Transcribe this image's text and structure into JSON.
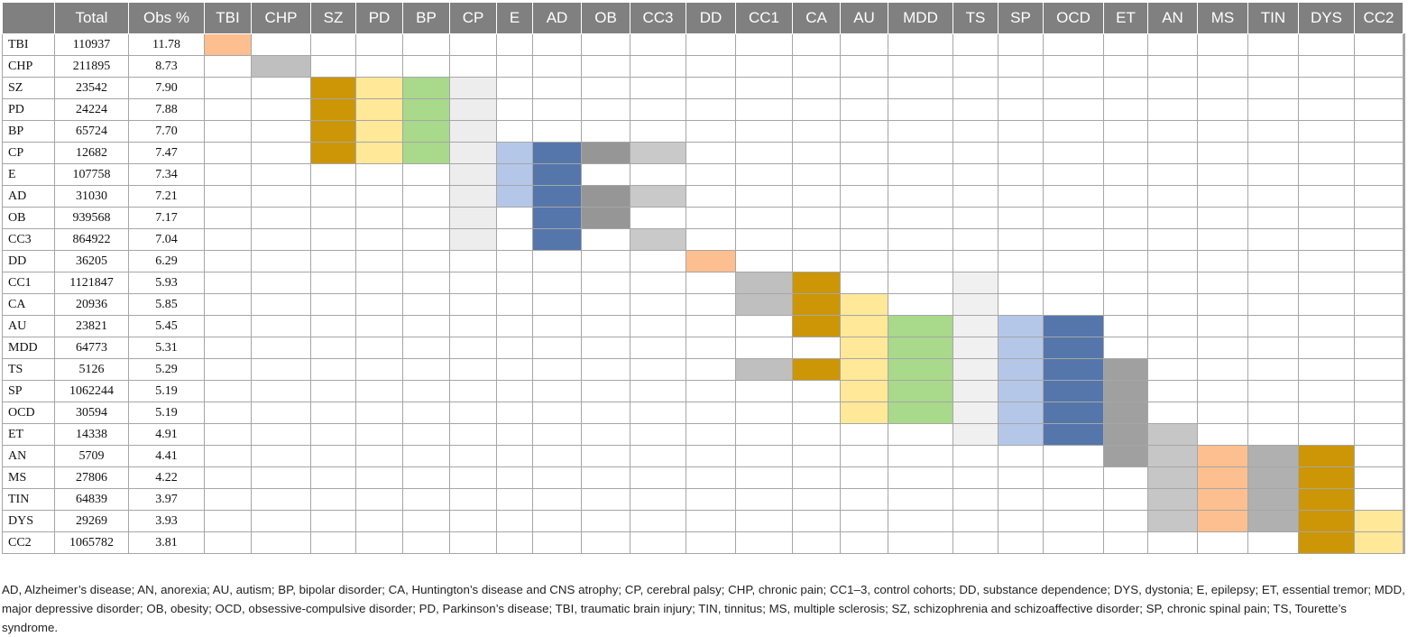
{
  "table": {
    "header": [
      "",
      "Total",
      "Obs %",
      "TBI",
      "CHP",
      "SZ",
      "PD",
      "BP",
      "CP",
      "E",
      "AD",
      "OB",
      "CC3",
      "DD",
      "CC1",
      "CA",
      "AU",
      "MDD",
      "TS",
      "SP",
      "OCD",
      "ET",
      "AN",
      "MS",
      "TIN",
      "DYS",
      "CC2"
    ],
    "palette": {
      "a": "#fdbf8f",
      "b": "#bfbfbf",
      "c": "#cc9606",
      "d": "#ffe898",
      "e": "#a9d98a",
      "f": "#ededed",
      "g": "#b4c7e8",
      "h": "#5576ab",
      "i": "#969696",
      "j": "#c9c9c9",
      "k": "#f0f0f0",
      "l": "#a0a0a0",
      "m": "#c6c6c6",
      "n": "#b0b0b0"
    },
    "rows": [
      {
        "label": "TBI",
        "total": "110937",
        "obs": "11.78",
        "fill": "a........................."
      },
      {
        "label": "CHP",
        "total": "211895",
        "obs": "8.73",
        "fill": ".b........................"
      },
      {
        "label": "SZ",
        "total": "23542",
        "obs": "7.90",
        "fill": "..cdef...................."
      },
      {
        "label": "PD",
        "total": "24224",
        "obs": "7.88",
        "fill": "..cdef...................."
      },
      {
        "label": "BP",
        "total": "65724",
        "obs": "7.70",
        "fill": "..cdef...................."
      },
      {
        "label": "CP",
        "total": "12682",
        "obs": "7.47",
        "fill": "..cdefghij................"
      },
      {
        "label": "E",
        "total": "107758",
        "obs": "7.34",
        "fill": ".....fgh.................."
      },
      {
        "label": "AD",
        "total": "31030",
        "obs": "7.21",
        "fill": ".....fghij................"
      },
      {
        "label": "OB",
        "total": "939568",
        "obs": "7.17",
        "fill": ".....f.hi................."
      },
      {
        "label": "CC3",
        "total": "864922",
        "obs": "7.04",
        "fill": ".....f.h.j................"
      },
      {
        "label": "DD",
        "total": "36205",
        "obs": "6.29",
        "fill": "..........a..............."
      },
      {
        "label": "CC1",
        "total": "1121847",
        "obs": "5.93",
        "fill": "...........bc..k.........."
      },
      {
        "label": "CA",
        "total": "20936",
        "obs": "5.85",
        "fill": "...........bcd.k.........."
      },
      {
        "label": "AU",
        "total": "23821",
        "obs": "5.45",
        "fill": "............cdekgh........"
      },
      {
        "label": "MDD",
        "total": "64773",
        "obs": "5.31",
        "fill": ".............dekgh........"
      },
      {
        "label": "TS",
        "total": "5126",
        "obs": "5.29",
        "fill": "...........bcdekghl......."
      },
      {
        "label": "SP",
        "total": "1062244",
        "obs": "5.19",
        "fill": ".............dekghl......."
      },
      {
        "label": "OCD",
        "total": "30594",
        "obs": "5.19",
        "fill": ".............dekghl......."
      },
      {
        "label": "ET",
        "total": "14338",
        "obs": "4.91",
        "fill": "...............kghlm......"
      },
      {
        "label": "AN",
        "total": "5709",
        "obs": "4.41",
        "fill": "..................lmanc..."
      },
      {
        "label": "MS",
        "total": "27806",
        "obs": "4.22",
        "fill": "...................manc..."
      },
      {
        "label": "TIN",
        "total": "64839",
        "obs": "3.97",
        "fill": "...................manc..."
      },
      {
        "label": "DYS",
        "total": "29269",
        "obs": "3.93",
        "fill": "...................mancd.."
      },
      {
        "label": "CC2",
        "total": "1065782",
        "obs": "3.81",
        "fill": "......................cd.."
      }
    ]
  },
  "footnote": "AD, Alzheimer’s disease; AN, anorexia; AU, autism; BP, bipolar disorder; CA, Huntington’s disease and CNS atrophy; CP, cerebral palsy; CHP, chronic pain; CC1–3, control cohorts; DD, substance dependence; DYS, dystonia; E, epilepsy; ET, essential tremor; MDD, major depressive disorder; OB, obesity; OCD, obsessive-compulsive disorder; PD, Parkinson’s disease; TBI, traumatic brain injury; TIN, tinnitus; MS, multiple sclerosis; SZ, schizophrenia and schizoaffective disorder; SP, chronic spinal pain; TS, Tourette’s syndrome."
}
